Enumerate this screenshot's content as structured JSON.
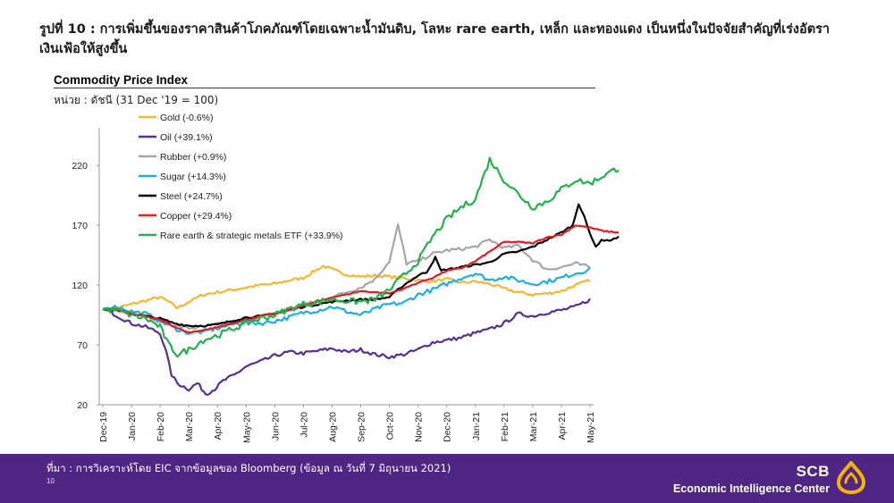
{
  "figure_title": "รูปที่ 10 : การเพิ่มขึ้นของราคาสินค้าโภคภัณฑ์โดยเฉพาะน้ำมันดิบ, โลหะ rare earth, เหล็ก และทองแดง เป็นหนึ่งในปัจจัยสำคัญที่เร่งอัตราเงินเฟ้อให้สูงขึ้น",
  "footer": {
    "source": "ที่มา : การวิเคราะห์โดย EIC จากข้อมูลของ Bloomberg (ข้อมูล ณ วันที่ 7 มิถุนายน 2021)",
    "page_number": "10",
    "brand_name": "SCB",
    "brand_sub": "Economic Intelligence Center",
    "colors": {
      "background": "#4f2683",
      "logo": "#f5b400"
    }
  },
  "chart_data": {
    "type": "line",
    "title": "Commodity Price Index",
    "ylabel": "หน่วย : ดัชนี (31 Dec '19 = 100)",
    "xlabel": "",
    "ylim": [
      20,
      250
    ],
    "yticks": [
      20,
      70,
      120,
      170,
      220
    ],
    "x_categories": [
      "Dec-19",
      "Jan-20",
      "Feb-20",
      "Mar-20",
      "Apr-20",
      "May-20",
      "Jun-20",
      "Jul-20",
      "Aug-20",
      "Sep-20",
      "Oct-20",
      "Nov-20",
      "Dec-20",
      "Jan-21",
      "Feb-21",
      "Mar-21",
      "Apr-21",
      "May-21"
    ],
    "legend_position": "top-left",
    "grid": false,
    "series": [
      {
        "name": "Gold (-0.6%)",
        "color": "#f5b731",
        "noise": 1.2,
        "points": [
          [
            0,
            100
          ],
          [
            0.5,
            101
          ],
          [
            1,
            104
          ],
          [
            1.5,
            107
          ],
          [
            2,
            110
          ],
          [
            2.3,
            106
          ],
          [
            2.6,
            101
          ],
          [
            3,
            106
          ],
          [
            3.5,
            112
          ],
          [
            4,
            114
          ],
          [
            4.5,
            116
          ],
          [
            5,
            118
          ],
          [
            5.5,
            120
          ],
          [
            6,
            121
          ],
          [
            6.5,
            124
          ],
          [
            7,
            126
          ],
          [
            7.4,
            132
          ],
          [
            7.7,
            136
          ],
          [
            8,
            133
          ],
          [
            8.5,
            129
          ],
          [
            9,
            127
          ],
          [
            9.5,
            128
          ],
          [
            10,
            127
          ],
          [
            10.5,
            126
          ],
          [
            11,
            124
          ],
          [
            11.5,
            123
          ],
          [
            12,
            125
          ],
          [
            12.5,
            122
          ],
          [
            13,
            123
          ],
          [
            13.5,
            121
          ],
          [
            14,
            117
          ],
          [
            14.5,
            114
          ],
          [
            15,
            112
          ],
          [
            15.5,
            113
          ],
          [
            16,
            115
          ],
          [
            16.5,
            120
          ],
          [
            17,
            124
          ]
        ]
      },
      {
        "name": "Oil (+39.1%)",
        "color": "#55308d",
        "noise": 1.5,
        "points": [
          [
            0,
            100
          ],
          [
            0.3,
            97
          ],
          [
            0.6,
            93
          ],
          [
            1,
            88
          ],
          [
            1.5,
            85
          ],
          [
            2,
            80
          ],
          [
            2.2,
            65
          ],
          [
            2.4,
            45
          ],
          [
            2.6,
            38
          ],
          [
            3,
            33
          ],
          [
            3.3,
            38
          ],
          [
            3.6,
            29
          ],
          [
            3.9,
            33
          ],
          [
            4.2,
            40
          ],
          [
            4.6,
            45
          ],
          [
            5,
            52
          ],
          [
            5.5,
            56
          ],
          [
            6,
            61
          ],
          [
            6.5,
            64
          ],
          [
            7,
            63
          ],
          [
            7.5,
            65
          ],
          [
            8,
            67
          ],
          [
            8.5,
            64
          ],
          [
            9,
            66
          ],
          [
            9.5,
            62
          ],
          [
            10,
            60
          ],
          [
            10.5,
            62
          ],
          [
            11,
            66
          ],
          [
            11.5,
            72
          ],
          [
            12,
            74
          ],
          [
            12.5,
            76
          ],
          [
            13,
            80
          ],
          [
            13.5,
            83
          ],
          [
            14,
            88
          ],
          [
            14.5,
            96
          ],
          [
            15,
            94
          ],
          [
            15.5,
            97
          ],
          [
            16,
            99
          ],
          [
            16.5,
            102
          ],
          [
            17,
            108
          ]
        ]
      },
      {
        "name": "Rubber (+0.9%)",
        "color": "#a6a6a6",
        "noise": 1.4,
        "points": [
          [
            0,
            100
          ],
          [
            0.5,
            101
          ],
          [
            1,
            98
          ],
          [
            1.5,
            94
          ],
          [
            2,
            90
          ],
          [
            2.5,
            86
          ],
          [
            3,
            84
          ],
          [
            3.5,
            85
          ],
          [
            4,
            87
          ],
          [
            4.5,
            89
          ],
          [
            5,
            91
          ],
          [
            5.5,
            93
          ],
          [
            6,
            97
          ],
          [
            6.5,
            100
          ],
          [
            7,
            104
          ],
          [
            7.5,
            106
          ],
          [
            8,
            110
          ],
          [
            8.5,
            114
          ],
          [
            9,
            118
          ],
          [
            9.5,
            125
          ],
          [
            10,
            140
          ],
          [
            10.3,
            170
          ],
          [
            10.6,
            138
          ],
          [
            11,
            140
          ],
          [
            11.5,
            146
          ],
          [
            12,
            149
          ],
          [
            12.5,
            150
          ],
          [
            13,
            152
          ],
          [
            13.5,
            158
          ],
          [
            14,
            151
          ],
          [
            14.5,
            153
          ],
          [
            15,
            141
          ],
          [
            15.5,
            133
          ],
          [
            16,
            135
          ],
          [
            16.5,
            138
          ],
          [
            17,
            135
          ]
        ]
      },
      {
        "name": "Sugar (+14.3%)",
        "color": "#1aafe6",
        "noise": 1.8,
        "points": [
          [
            0,
            100
          ],
          [
            0.5,
            102
          ],
          [
            1,
            98
          ],
          [
            1.5,
            96
          ],
          [
            2,
            90
          ],
          [
            2.5,
            84
          ],
          [
            3,
            80
          ],
          [
            3.5,
            81
          ],
          [
            4,
            84
          ],
          [
            4.5,
            87
          ],
          [
            5,
            89
          ],
          [
            5.5,
            88
          ],
          [
            6,
            90
          ],
          [
            6.5,
            93
          ],
          [
            7,
            97
          ],
          [
            7.5,
            99
          ],
          [
            8,
            102
          ],
          [
            8.5,
            98
          ],
          [
            9,
            95
          ],
          [
            9.5,
            100
          ],
          [
            10,
            104
          ],
          [
            10.5,
            105
          ],
          [
            11,
            112
          ],
          [
            11.5,
            116
          ],
          [
            12,
            121
          ],
          [
            12.5,
            126
          ],
          [
            13,
            130
          ],
          [
            13.5,
            124
          ],
          [
            14,
            127
          ],
          [
            14.5,
            124
          ],
          [
            15,
            121
          ],
          [
            15.5,
            123
          ],
          [
            16,
            126
          ],
          [
            16.5,
            130
          ],
          [
            17,
            133
          ]
        ]
      },
      {
        "name": "Steel (+24.7%)",
        "color": "#000000",
        "noise": 0.8,
        "points": [
          [
            0,
            100
          ],
          [
            0.5,
            99
          ],
          [
            1,
            96
          ],
          [
            1.5,
            94
          ],
          [
            2,
            92
          ],
          [
            2.5,
            88
          ],
          [
            3,
            86
          ],
          [
            3.5,
            86
          ],
          [
            4,
            87
          ],
          [
            4.5,
            90
          ],
          [
            5,
            93
          ],
          [
            5.5,
            94
          ],
          [
            6,
            96
          ],
          [
            6.5,
            99
          ],
          [
            7,
            102
          ],
          [
            7.5,
            104
          ],
          [
            8,
            106
          ],
          [
            8.5,
            107
          ],
          [
            9,
            108
          ],
          [
            9.5,
            108
          ],
          [
            10,
            110
          ],
          [
            10.5,
            120
          ],
          [
            11,
            128
          ],
          [
            11.3,
            131
          ],
          [
            11.6,
            143
          ],
          [
            11.8,
            132
          ],
          [
            12,
            133
          ],
          [
            12.5,
            135
          ],
          [
            13,
            137
          ],
          [
            13.5,
            139
          ],
          [
            14,
            146
          ],
          [
            14.5,
            148
          ],
          [
            15,
            152
          ],
          [
            15.5,
            158
          ],
          [
            16,
            164
          ],
          [
            16.4,
            170
          ],
          [
            16.6,
            188
          ],
          [
            16.8,
            178
          ],
          [
            17,
            162
          ],
          [
            17.2,
            152
          ],
          [
            17.4,
            158
          ],
          [
            17.6,
            157
          ],
          [
            18,
            160
          ]
        ]
      },
      {
        "name": "Copper (+29.4%)",
        "color": "#e31b23",
        "noise": 0.5,
        "points": [
          [
            0,
            100
          ],
          [
            0.5,
            99
          ],
          [
            1,
            96
          ],
          [
            1.5,
            94
          ],
          [
            2,
            91
          ],
          [
            2.5,
            85
          ],
          [
            3,
            80
          ],
          [
            3.5,
            82
          ],
          [
            4,
            85
          ],
          [
            4.5,
            88
          ],
          [
            5,
            91
          ],
          [
            5.5,
            94
          ],
          [
            6,
            96
          ],
          [
            6.5,
            99
          ],
          [
            7,
            103
          ],
          [
            7.5,
            106
          ],
          [
            8,
            110
          ],
          [
            8.5,
            112
          ],
          [
            9,
            115
          ],
          [
            9.5,
            114
          ],
          [
            10,
            113
          ],
          [
            10.5,
            117
          ],
          [
            11,
            122
          ],
          [
            11.5,
            126
          ],
          [
            12,
            132
          ],
          [
            12.5,
            134
          ],
          [
            13,
            140
          ],
          [
            13.5,
            148
          ],
          [
            14,
            156
          ],
          [
            14.5,
            156
          ],
          [
            15,
            155
          ],
          [
            15.5,
            160
          ],
          [
            16,
            162
          ],
          [
            16.5,
            170
          ],
          [
            17,
            168
          ],
          [
            17.5,
            165
          ],
          [
            18,
            164
          ]
        ]
      },
      {
        "name": "Rare earth & strategic metals ETF (+33.9%)",
        "color": "#22b14c",
        "noise": 2.6,
        "points": [
          [
            0,
            100
          ],
          [
            0.5,
            99
          ],
          [
            1,
            95
          ],
          [
            1.5,
            92
          ],
          [
            2,
            85
          ],
          [
            2.3,
            70
          ],
          [
            2.6,
            62
          ],
          [
            3,
            66
          ],
          [
            3.5,
            74
          ],
          [
            4,
            78
          ],
          [
            4.5,
            83
          ],
          [
            5,
            88
          ],
          [
            5.5,
            92
          ],
          [
            6,
            95
          ],
          [
            6.5,
            100
          ],
          [
            7,
            104
          ],
          [
            7.5,
            106
          ],
          [
            8,
            108
          ],
          [
            8.5,
            107
          ],
          [
            9,
            106
          ],
          [
            9.5,
            108
          ],
          [
            10,
            116
          ],
          [
            10.5,
            128
          ],
          [
            11,
            140
          ],
          [
            11.5,
            160
          ],
          [
            12,
            175
          ],
          [
            12.5,
            185
          ],
          [
            13,
            192
          ],
          [
            13.5,
            225
          ],
          [
            14,
            208
          ],
          [
            14.5,
            196
          ],
          [
            15,
            185
          ],
          [
            15.5,
            190
          ],
          [
            16,
            200
          ],
          [
            16.5,
            208
          ],
          [
            17,
            205
          ],
          [
            17.5,
            212
          ],
          [
            18,
            218
          ]
        ]
      }
    ]
  }
}
